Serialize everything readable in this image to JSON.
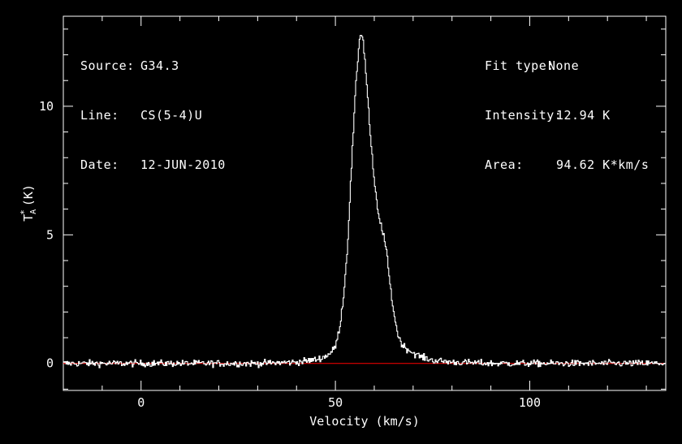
{
  "chart_data": {
    "type": "line",
    "xlabel": "Velocity (km/s)",
    "ylabel": "T_A* (K)",
    "xlim": [
      -20,
      135
    ],
    "ylim": [
      -1.05,
      13.5
    ],
    "xticks": [
      0,
      50,
      100
    ],
    "yticks": [
      0,
      5,
      10
    ],
    "baseline": 0,
    "colors": {
      "background": "#000000",
      "axes": "#ffffff",
      "spectrum": "#ffffff",
      "baseline": "#ff0000"
    },
    "series": [
      {
        "x": [
          -20,
          30,
          40,
          45,
          47,
          49,
          50,
          51,
          52,
          53,
          54,
          55,
          56,
          56.5,
          57,
          57.5,
          58,
          59,
          60,
          61,
          62,
          63,
          64,
          65,
          66,
          67,
          68,
          70,
          72,
          75,
          80,
          90,
          135
        ],
        "y": [
          0,
          0,
          0.05,
          0.15,
          0.25,
          0.45,
          0.7,
          1.4,
          2.6,
          4.5,
          7.5,
          10.4,
          12.5,
          12.9,
          12.6,
          11.8,
          10.8,
          8.6,
          6.9,
          5.7,
          5.2,
          4.4,
          3.0,
          1.9,
          1.1,
          0.75,
          0.6,
          0.4,
          0.25,
          0.12,
          0.05,
          0,
          0
        ]
      }
    ]
  },
  "info_left": [
    {
      "key": "Source:",
      "value": "G34.3"
    },
    {
      "key": "Line:",
      "value": "CS(5-4)U"
    },
    {
      "key": "Date:",
      "value": "12-JUN-2010"
    }
  ],
  "info_right": [
    {
      "key": "Fit type:",
      "value": "None"
    },
    {
      "key": "Intensity:",
      "value": "12.94 K"
    },
    {
      "key": "Area:",
      "value": "94.62 K*km/s"
    }
  ]
}
